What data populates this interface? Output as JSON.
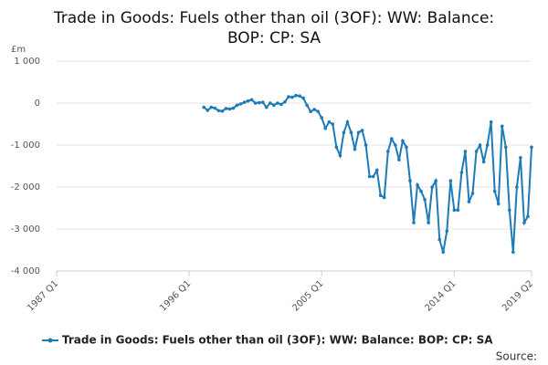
{
  "chart_data": {
    "type": "line",
    "title": [
      "Trade in Goods: Fuels other than oil (3OF): WW: Balance:",
      "BOP: CP: SA"
    ],
    "ylabel": "£m",
    "source": "Source:",
    "categories": [
      "1987 Q1",
      null,
      null,
      null,
      null,
      null,
      null,
      null,
      null,
      null,
      null,
      null,
      null,
      null,
      null,
      null,
      null,
      null,
      null,
      null,
      null,
      null,
      null,
      null,
      null,
      null,
      null,
      null,
      null,
      null,
      null,
      null,
      null,
      null,
      null,
      null,
      "1996 Q1",
      null,
      null,
      null,
      null,
      null,
      null,
      null,
      null,
      null,
      null,
      null,
      null,
      null,
      null,
      null,
      null,
      null,
      null,
      null,
      null,
      null,
      null,
      null,
      null,
      null,
      null,
      null,
      null,
      null,
      null,
      null,
      null,
      null,
      null,
      null,
      "2005 Q1",
      null,
      null,
      null,
      null,
      null,
      null,
      null,
      null,
      null,
      null,
      null,
      null,
      null,
      null,
      null,
      null,
      null,
      null,
      null,
      null,
      null,
      null,
      null,
      null,
      null,
      null,
      null,
      null,
      null,
      null,
      null,
      null,
      null,
      null,
      null,
      "2014 Q1",
      null,
      null,
      null,
      null,
      null,
      null,
      null,
      null,
      null,
      null,
      null,
      null,
      null,
      null,
      null,
      null,
      null,
      null,
      null,
      null,
      "2019 Q2"
    ],
    "series": [
      {
        "name": "Trade in Goods: Fuels other than oil (3OF): WW: Balance: BOP: CP: SA",
        "color": "#1f7ab8",
        "values": [
          null,
          null,
          null,
          null,
          null,
          null,
          null,
          null,
          null,
          null,
          null,
          null,
          null,
          null,
          null,
          null,
          null,
          null,
          null,
          null,
          null,
          null,
          null,
          null,
          null,
          null,
          null,
          null,
          null,
          null,
          null,
          null,
          null,
          null,
          null,
          null,
          null,
          null,
          null,
          null,
          -100,
          -170,
          -100,
          -120,
          -180,
          -190,
          -130,
          -140,
          -120,
          -50,
          -20,
          20,
          50,
          80,
          0,
          10,
          20,
          -100,
          0,
          -50,
          0,
          -30,
          30,
          150,
          140,
          180,
          170,
          120,
          -50,
          -200,
          -150,
          -200,
          -350,
          -600,
          -450,
          -500,
          -1050,
          -1250,
          -700,
          -450,
          -700,
          -1100,
          -700,
          -650,
          -1000,
          -1750,
          -1750,
          -1600,
          -2200,
          -2250,
          -1150,
          -850,
          -1000,
          -1350,
          -900,
          -1050,
          -1850,
          -2850,
          -1950,
          -2100,
          -2300,
          -2850,
          -2000,
          -1850,
          -3250,
          -3550,
          -3050,
          -1850,
          -2550,
          -2550,
          -1650,
          -1150,
          -2350,
          -2150,
          -1150,
          -1000,
          -1400,
          -1000,
          -450,
          -2100,
          -2400,
          -550,
          -1050,
          -2550,
          -3550,
          -2000,
          -1300,
          -2850,
          -2700,
          -1050
        ]
      }
    ],
    "ylim": [
      -4000,
      1000
    ],
    "yticks": [
      {
        "value": -4000,
        "label": "-4 000"
      },
      {
        "value": -3000,
        "label": "-3 000"
      },
      {
        "value": -2000,
        "label": "-2 000"
      },
      {
        "value": -1000,
        "label": "-1 000"
      },
      0,
      {
        "value": 1000,
        "label": "1 000"
      }
    ],
    "grid": true
  }
}
